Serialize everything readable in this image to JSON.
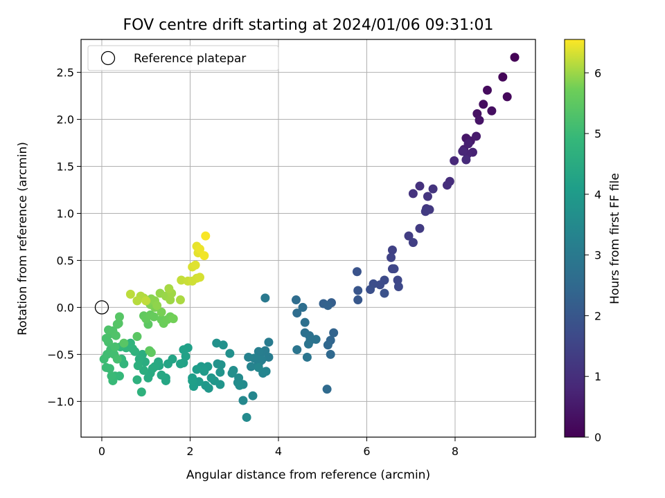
{
  "chart_data": {
    "type": "scatter",
    "title": "FOV centre drift starting at 2024/01/06 09:31:01",
    "xlabel": "Angular distance from reference (arcmin)",
    "ylabel": "Rotation from reference (arcmin)",
    "xlim": [
      -0.47,
      9.82
    ],
    "ylim": [
      -1.38,
      2.85
    ],
    "x_ticks": [
      0,
      2,
      4,
      6,
      8
    ],
    "x_tick_labels": [
      "0",
      "2",
      "4",
      "6",
      "8"
    ],
    "y_ticks": [
      -1.0,
      -0.5,
      0.0,
      0.5,
      1.0,
      1.5,
      2.0,
      2.5
    ],
    "y_tick_labels": [
      "−1.0",
      "−0.5",
      "0.0",
      "0.5",
      "1.0",
      "1.5",
      "2.0",
      "2.5"
    ],
    "grid": true,
    "legend": {
      "placement": "top-left",
      "entries": [
        "Reference platepar"
      ]
    },
    "colorbar": {
      "label": "Hours from first FF file",
      "min": 0,
      "max": 6.55,
      "ticks": [
        0,
        1,
        2,
        3,
        4,
        5,
        6
      ],
      "tick_labels": [
        "0",
        "1",
        "2",
        "3",
        "4",
        "5",
        "6"
      ],
      "colormap": "viridis"
    },
    "reference_point": {
      "x": 0,
      "y": 0
    },
    "points": [
      [
        9.35,
        2.66,
        0.05
      ],
      [
        9.08,
        2.45,
        0.1
      ],
      [
        9.18,
        2.24,
        0.15
      ],
      [
        8.73,
        2.31,
        0.2
      ],
      [
        8.64,
        2.16,
        0.25
      ],
      [
        8.83,
        2.09,
        0.3
      ],
      [
        8.5,
        2.06,
        0.35
      ],
      [
        8.55,
        1.99,
        0.4
      ],
      [
        8.25,
        1.8,
        0.45
      ],
      [
        8.35,
        1.77,
        0.5
      ],
      [
        8.48,
        1.82,
        0.55
      ],
      [
        8.2,
        1.68,
        0.6
      ],
      [
        8.3,
        1.74,
        0.65
      ],
      [
        8.4,
        1.65,
        0.7
      ],
      [
        8.28,
        1.63,
        0.75
      ],
      [
        8.17,
        1.66,
        0.8
      ],
      [
        7.98,
        1.56,
        0.85
      ],
      [
        8.25,
        1.57,
        0.9
      ],
      [
        7.88,
        1.34,
        0.95
      ],
      [
        7.82,
        1.3,
        1.0
      ],
      [
        7.2,
        1.29,
        1.05
      ],
      [
        7.05,
        1.21,
        1.1
      ],
      [
        7.5,
        1.26,
        1.12
      ],
      [
        7.38,
        1.18,
        1.15
      ],
      [
        7.35,
        1.05,
        1.2
      ],
      [
        7.42,
        1.04,
        1.25
      ],
      [
        7.33,
        1.02,
        1.28
      ],
      [
        7.2,
        0.84,
        1.3
      ],
      [
        6.95,
        0.76,
        1.35
      ],
      [
        7.05,
        0.69,
        1.4
      ],
      [
        6.58,
        0.61,
        1.45
      ],
      [
        6.55,
        0.53,
        1.5
      ],
      [
        6.58,
        0.41,
        1.55
      ],
      [
        6.62,
        0.41,
        1.58
      ],
      [
        6.7,
        0.29,
        1.6
      ],
      [
        6.72,
        0.22,
        1.65
      ],
      [
        6.4,
        0.29,
        1.7
      ],
      [
        6.3,
        0.24,
        1.72
      ],
      [
        6.15,
        0.25,
        1.75
      ],
      [
        6.08,
        0.19,
        1.8
      ],
      [
        6.4,
        0.15,
        1.85
      ],
      [
        5.78,
        0.38,
        1.9
      ],
      [
        5.8,
        0.18,
        1.95
      ],
      [
        5.8,
        0.08,
        2.0
      ],
      [
        5.2,
        0.05,
        2.2
      ],
      [
        5.02,
        0.04,
        2.25
      ],
      [
        5.12,
        0.02,
        2.3
      ],
      [
        5.25,
        -0.27,
        2.35
      ],
      [
        5.18,
        -0.35,
        2.4
      ],
      [
        5.12,
        -0.4,
        2.45
      ],
      [
        5.18,
        -0.5,
        2.5
      ],
      [
        5.1,
        -0.87,
        2.55
      ],
      [
        4.4,
        0.08,
        2.6
      ],
      [
        4.42,
        -0.06,
        2.62
      ],
      [
        4.55,
        0.0,
        2.65
      ],
      [
        4.6,
        -0.16,
        2.7
      ],
      [
        4.6,
        -0.27,
        2.72
      ],
      [
        4.7,
        -0.3,
        2.75
      ],
      [
        4.72,
        -0.35,
        2.78
      ],
      [
        4.85,
        -0.34,
        2.8
      ],
      [
        4.68,
        -0.39,
        2.82
      ],
      [
        4.42,
        -0.45,
        2.85
      ],
      [
        4.65,
        -0.53,
        2.88
      ],
      [
        3.7,
        0.1,
        3.0
      ],
      [
        3.78,
        -0.37,
        3.05
      ],
      [
        3.7,
        -0.46,
        3.08
      ],
      [
        3.78,
        -0.53,
        3.1
      ],
      [
        3.6,
        -0.49,
        3.12
      ],
      [
        3.55,
        -0.47,
        3.15
      ],
      [
        3.62,
        -0.56,
        3.18
      ],
      [
        3.5,
        -0.55,
        3.2
      ],
      [
        3.55,
        -0.6,
        3.22
      ],
      [
        3.45,
        -0.54,
        3.25
      ],
      [
        3.32,
        -0.53,
        3.28
      ],
      [
        3.38,
        -0.63,
        3.3
      ],
      [
        3.65,
        -0.7,
        3.32
      ],
      [
        3.72,
        -0.68,
        3.35
      ],
      [
        3.55,
        -0.64,
        3.38
      ],
      [
        3.42,
        -0.94,
        3.4
      ],
      [
        3.2,
        -0.99,
        3.45
      ],
      [
        3.28,
        -1.17,
        3.5
      ],
      [
        3.2,
        -0.82,
        3.52
      ],
      [
        3.1,
        -0.75,
        3.55
      ],
      [
        3.08,
        -0.8,
        3.58
      ],
      [
        3.12,
        -0.83,
        3.6
      ],
      [
        2.98,
        -0.67,
        3.62
      ],
      [
        2.95,
        -0.7,
        3.65
      ],
      [
        2.9,
        -0.49,
        3.68
      ],
      [
        2.75,
        -0.4,
        3.7
      ],
      [
        2.6,
        -0.38,
        3.72
      ],
      [
        2.7,
        -0.61,
        3.75
      ],
      [
        2.62,
        -0.6,
        3.78
      ],
      [
        2.68,
        -0.69,
        3.8
      ],
      [
        2.68,
        -0.82,
        3.82
      ],
      [
        2.55,
        -0.78,
        3.85
      ],
      [
        2.48,
        -0.75,
        3.88
      ],
      [
        2.42,
        -0.86,
        3.9
      ],
      [
        2.35,
        -0.83,
        3.92
      ],
      [
        2.4,
        -0.63,
        3.95
      ],
      [
        2.25,
        -0.63,
        3.98
      ],
      [
        2.32,
        -0.68,
        4.0
      ],
      [
        2.2,
        -0.79,
        4.02
      ],
      [
        2.15,
        -0.66,
        4.05
      ],
      [
        2.05,
        -0.75,
        4.08
      ],
      [
        2.08,
        -0.84,
        4.1
      ],
      [
        2.05,
        -0.78,
        4.12
      ],
      [
        1.95,
        -0.43,
        4.15
      ],
      [
        1.85,
        -0.45,
        4.18
      ],
      [
        1.9,
        -0.52,
        4.2
      ],
      [
        1.85,
        -0.59,
        4.22
      ],
      [
        1.78,
        -0.6,
        4.25
      ],
      [
        1.6,
        -0.55,
        4.28
      ],
      [
        1.5,
        -0.6,
        4.3
      ],
      [
        1.45,
        -0.75,
        4.32
      ],
      [
        1.45,
        -0.78,
        4.35
      ],
      [
        1.35,
        -0.72,
        4.38
      ],
      [
        1.3,
        -0.62,
        4.4
      ],
      [
        1.28,
        -0.58,
        4.42
      ],
      [
        1.2,
        -0.63,
        4.45
      ],
      [
        1.15,
        -0.65,
        4.48
      ],
      [
        1.1,
        -0.7,
        4.5
      ],
      [
        1.05,
        -0.75,
        4.52
      ],
      [
        0.98,
        -0.58,
        4.55
      ],
      [
        0.95,
        -0.67,
        4.58
      ],
      [
        0.92,
        -0.5,
        4.6
      ],
      [
        0.85,
        -0.55,
        4.62
      ],
      [
        0.82,
        -0.62,
        4.65
      ],
      [
        0.8,
        -0.77,
        4.68
      ],
      [
        0.9,
        -0.9,
        4.7
      ],
      [
        0.75,
        -0.47,
        4.72
      ],
      [
        0.7,
        -0.44,
        4.75
      ],
      [
        0.65,
        -0.38,
        4.78
      ],
      [
        0.55,
        -0.43,
        4.8
      ],
      [
        0.5,
        -0.6,
        4.82
      ],
      [
        0.45,
        -0.55,
        4.85
      ],
      [
        0.42,
        -0.42,
        4.88
      ],
      [
        0.4,
        -0.73,
        4.9
      ],
      [
        0.3,
        -0.73,
        4.92
      ],
      [
        0.25,
        -0.78,
        4.95
      ],
      [
        0.22,
        -0.73,
        4.98
      ],
      [
        0.18,
        -0.65,
        5.0
      ],
      [
        0.1,
        -0.64,
        5.02
      ],
      [
        0.05,
        -0.55,
        5.05
      ],
      [
        0.12,
        -0.5,
        5.08
      ],
      [
        0.2,
        -0.45,
        5.1
      ],
      [
        0.28,
        -0.5,
        5.12
      ],
      [
        0.35,
        -0.55,
        5.15
      ],
      [
        0.3,
        -0.42,
        5.18
      ],
      [
        0.15,
        -0.37,
        5.2
      ],
      [
        0.1,
        -0.33,
        5.22
      ],
      [
        0.2,
        -0.28,
        5.25
      ],
      [
        0.15,
        -0.24,
        5.28
      ],
      [
        0.25,
        -0.25,
        5.3
      ],
      [
        0.32,
        -0.3,
        5.32
      ],
      [
        0.35,
        -0.18,
        5.35
      ],
      [
        0.38,
        -0.17,
        5.38
      ],
      [
        0.4,
        -0.1,
        5.4
      ],
      [
        0.5,
        -0.38,
        5.42
      ],
      [
        0.8,
        -0.31,
        5.45
      ],
      [
        1.05,
        -0.18,
        5.48
      ],
      [
        1.08,
        -0.46,
        5.5
      ],
      [
        1.12,
        -0.48,
        5.52
      ],
      [
        0.95,
        -0.09,
        5.55
      ],
      [
        1.0,
        -0.12,
        5.58
      ],
      [
        1.1,
        -0.08,
        5.6
      ],
      [
        1.18,
        -0.1,
        5.62
      ],
      [
        1.35,
        -0.13,
        5.65
      ],
      [
        1.4,
        -0.17,
        5.68
      ],
      [
        1.48,
        -0.13,
        5.7
      ],
      [
        1.55,
        -0.1,
        5.72
      ],
      [
        1.62,
        -0.12,
        5.75
      ],
      [
        1.35,
        -0.05,
        5.78
      ],
      [
        1.2,
        0.0,
        5.8
      ],
      [
        1.1,
        0.03,
        5.82
      ],
      [
        1.05,
        0.06,
        5.85
      ],
      [
        1.12,
        0.09,
        5.88
      ],
      [
        1.2,
        0.07,
        5.9
      ],
      [
        1.25,
        0.02,
        5.92
      ],
      [
        1.32,
        0.15,
        5.95
      ],
      [
        1.45,
        0.12,
        5.98
      ],
      [
        1.55,
        0.08,
        6.0
      ],
      [
        1.58,
        0.15,
        6.02
      ],
      [
        1.52,
        0.2,
        6.05
      ],
      [
        1.78,
        0.08,
        6.08
      ],
      [
        0.95,
        0.1,
        6.1
      ],
      [
        0.88,
        0.12,
        6.12
      ],
      [
        0.8,
        0.07,
        6.15
      ],
      [
        0.65,
        0.14,
        6.18
      ],
      [
        1.0,
        0.07,
        6.2
      ],
      [
        1.8,
        0.29,
        6.22
      ],
      [
        1.95,
        0.28,
        6.25
      ],
      [
        2.05,
        0.28,
        6.28
      ],
      [
        2.15,
        0.31,
        6.3
      ],
      [
        2.22,
        0.32,
        6.32
      ],
      [
        2.05,
        0.43,
        6.35
      ],
      [
        2.12,
        0.45,
        6.38
      ],
      [
        2.18,
        0.58,
        6.4
      ],
      [
        2.15,
        0.65,
        6.42
      ],
      [
        2.22,
        0.62,
        6.45
      ],
      [
        2.32,
        0.55,
        6.48
      ],
      [
        2.35,
        0.76,
        6.52
      ]
    ]
  }
}
